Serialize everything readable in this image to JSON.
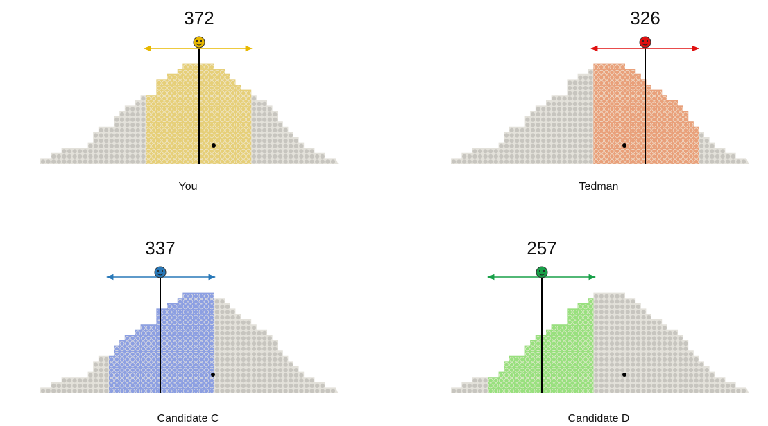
{
  "panels": [
    {
      "number": 372,
      "label": "You",
      "color": "#e8b800",
      "fill": "#e6cf78"
    },
    {
      "number": 326,
      "label": "Tedman",
      "color": "#e01010",
      "fill": "#e9a07a"
    },
    {
      "number": 337,
      "label": "Candidate C",
      "color": "#2878b8",
      "fill": "#8c9fe2"
    },
    {
      "number": 257,
      "label": "Candidate D",
      "color": "#18a048",
      "fill": "#98e07e"
    }
  ]
}
